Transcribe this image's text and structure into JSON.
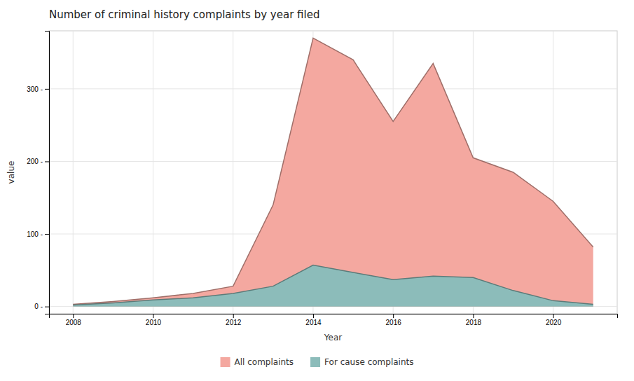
{
  "chart_data": {
    "type": "area",
    "title": "Number of criminal history complaints by year filed",
    "xlabel": "Year",
    "ylabel": "value",
    "x": [
      2008,
      2009,
      2010,
      2011,
      2012,
      2013,
      2014,
      2015,
      2016,
      2017,
      2018,
      2019,
      2020,
      2021
    ],
    "series": [
      {
        "name": "All complaints",
        "color": "#F4A8A0",
        "values": [
          3,
          7,
          12,
          18,
          28,
          140,
          370,
          340,
          255,
          335,
          205,
          185,
          145,
          82
        ]
      },
      {
        "name": "For cause complaints",
        "color": "#8CBCBA",
        "values": [
          2,
          5,
          9,
          12,
          18,
          28,
          57,
          47,
          37,
          42,
          40,
          22,
          8,
          3
        ]
      }
    ],
    "stacked": false,
    "xlim": [
      2007.4,
      2021.6
    ],
    "ylim": [
      -10,
      380
    ],
    "xticks": [
      2008,
      2010,
      2012,
      2014,
      2016,
      2018,
      2020
    ],
    "yticks": [
      {
        "value": 0,
        "label": "0 -"
      },
      {
        "value": 100,
        "label": "100 -"
      },
      {
        "value": 200,
        "label": "200 -"
      },
      {
        "value": 300,
        "label": "300 -"
      }
    ],
    "grid": true,
    "legend": "bottom"
  }
}
